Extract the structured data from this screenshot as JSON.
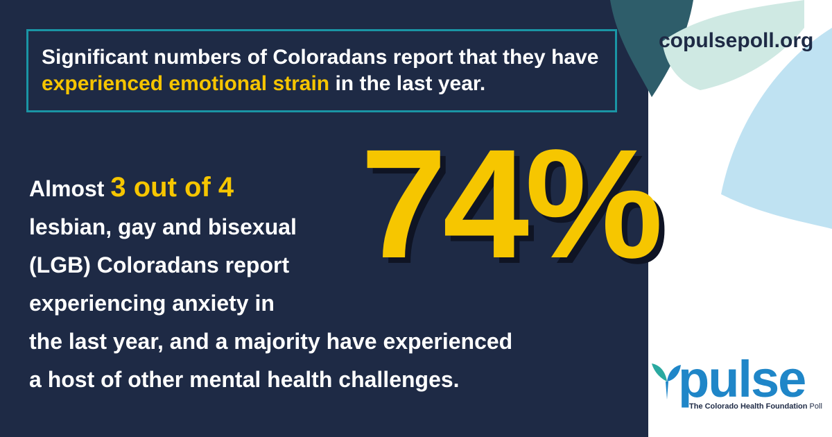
{
  "headline": {
    "pre": "Significant numbers of Coloradans report that they have ",
    "highlight": "experienced emotional strain",
    "post": " in the last year."
  },
  "site_url": "copulsepoll.org",
  "stat": "74%",
  "body": {
    "line1_pre": "Almost ",
    "line1_emph": "3 out of 4",
    "line2": "lesbian, gay and bisexual",
    "line3": "(LGB) Coloradans report",
    "line4": "experiencing anxiety in",
    "line5": "the last year, and a majority have experienced",
    "line6": "a host of other mental health challenges."
  },
  "logo": {
    "wordmark": "pulse",
    "tagline_bold": "The Colorado Health Foundation",
    "tagline_rest": " Poll"
  },
  "colors": {
    "panel": "#1e2a45",
    "accent_yellow": "#f6c600",
    "box_border": "#1a95a5",
    "logo_blue": "#1f86c8"
  }
}
